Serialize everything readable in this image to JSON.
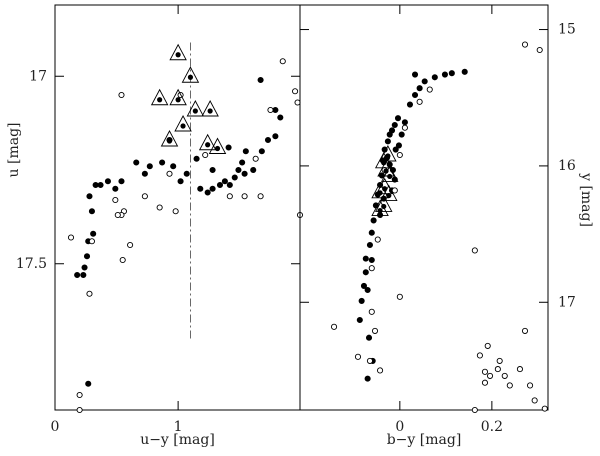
{
  "chart_data": [
    {
      "type": "scatter",
      "xlabel": "u−y [mag]",
      "ylabel": "u [mag]",
      "yaxis_side": "left",
      "xlim": [
        0,
        1.99
      ],
      "ylim": [
        17.89,
        16.81
      ],
      "xticks": [
        0,
        1
      ],
      "yticks": [
        17,
        17.5
      ],
      "vline": {
        "x": 1.1,
        "y": [
          16.91,
          17.7
        ]
      },
      "series": [
        {
          "marker": "filled",
          "x": [
            0.27,
            0.23,
            0.18,
            0.24,
            0.26,
            0.27,
            0.31,
            0.3,
            0.33,
            0.28,
            0.37,
            0.43,
            0.49,
            0.54,
            0.66,
            0.73,
            0.77,
            0.87,
            0.96,
            1.02,
            1.07,
            1.15,
            1.18,
            1.24,
            1.28,
            1.34,
            1.38,
            1.42,
            1.46,
            1.49,
            1.54,
            1.52,
            1.61,
            1.68,
            1.73,
            1.79,
            1.83,
            1.67,
            1.79,
            1.55,
            1.41,
            1.28,
            0.93
          ],
          "values": [
            17.82,
            17.53,
            17.53,
            17.51,
            17.48,
            17.44,
            17.42,
            17.36,
            17.29,
            17.32,
            17.29,
            17.28,
            17.3,
            17.28,
            17.23,
            17.26,
            17.24,
            17.23,
            17.24,
            17.28,
            17.26,
            17.22,
            17.3,
            17.31,
            17.3,
            17.29,
            17.28,
            17.29,
            17.27,
            17.25,
            17.26,
            17.23,
            17.25,
            17.2,
            17.17,
            17.16,
            17.11,
            17.01,
            17.09,
            17.2,
            17.19,
            17.25,
            17.17
          ]
        },
        {
          "marker": "open",
          "x": [
            0.13,
            0.2,
            0.2,
            0.28,
            0.55,
            0.61,
            0.73,
            0.85,
            0.93,
            0.49,
            0.56,
            0.54,
            0.98,
            1.22,
            1.42,
            1.54,
            1.63,
            1.75,
            1.85,
            1.95,
            1.97,
            1.99,
            1.67,
            1.02,
            0.54,
            0.3,
            0.51
          ],
          "values": [
            17.43,
            17.89,
            17.85,
            17.58,
            17.49,
            17.45,
            17.32,
            17.35,
            17.26,
            17.33,
            17.36,
            17.37,
            17.36,
            17.21,
            17.32,
            17.32,
            17.22,
            17.09,
            16.96,
            17.04,
            17.07,
            17.37,
            17.32,
            17.05,
            17.05,
            17.44,
            17.37
          ]
        },
        {
          "marker": "triangle",
          "x": [
            1.0,
            1.1,
            0.85,
            1.0,
            1.14,
            1.26,
            1.04,
            0.93,
            1.24,
            1.32
          ],
          "values": [
            16.94,
            17.0,
            17.06,
            17.06,
            17.09,
            17.09,
            17.13,
            17.17,
            17.18,
            17.19
          ]
        }
      ]
    },
    {
      "type": "scatter",
      "xlabel": "b−y [mag]",
      "ylabel": "y [mag]",
      "yaxis_side": "right",
      "xlim": [
        -0.217,
        0.322
      ],
      "ylim": [
        17.79,
        14.82
      ],
      "xticks": [
        0,
        0.2
      ],
      "yticks": [
        15,
        16,
        17
      ],
      "series": [
        {
          "marker": "filled",
          "x": [
            -0.07,
            -0.087,
            -0.083,
            -0.078,
            -0.074,
            -0.074,
            -0.065,
            -0.061,
            -0.057,
            -0.052,
            -0.048,
            -0.043,
            -0.039,
            -0.037,
            -0.033,
            -0.026,
            -0.022,
            -0.017,
            -0.011,
            -0.004,
            -0.011,
            -0.015,
            -0.022,
            -0.028,
            -0.009,
            -0.002,
            0.004,
            0.011,
            0.022,
            0.033,
            0.043,
            0.054,
            0.076,
            0.098,
            0.113,
            0.141,
            0.033,
            -0.017,
            -0.035,
            -0.043,
            -0.061,
            -0.07,
            -0.067,
            -0.059
          ],
          "values": [
            17.56,
            17.13,
            16.99,
            16.88,
            16.78,
            16.68,
            16.58,
            16.49,
            16.4,
            16.29,
            16.21,
            16.14,
            16.07,
            15.96,
            15.88,
            15.82,
            15.77,
            15.74,
            15.7,
            15.65,
            16.1,
            16.03,
            15.99,
            15.94,
            15.88,
            15.85,
            15.77,
            15.68,
            15.55,
            15.48,
            15.43,
            15.38,
            15.35,
            15.33,
            15.32,
            15.31,
            15.33,
            16.18,
            16.24,
            16.36,
            16.69,
            16.91,
            17.26,
            17.43
          ]
        },
        {
          "marker": "open",
          "x": [
            -0.143,
            -0.091,
            -0.065,
            -0.043,
            -0.061,
            -0.054,
            0,
            -0.048,
            -0.061,
            -0.011,
            -0.033,
            0,
            0.011,
            0.043,
            0.065,
            0.163,
            0.272,
            0.304,
            0.272,
            0.191,
            0.174,
            0.217,
            0.196,
            0.185,
            0.213,
            0.228,
            0.239,
            0.283,
            0.185,
            0.163,
            0.315,
            0.293,
            0.261
          ],
          "values": [
            17.18,
            17.4,
            17.43,
            17.5,
            17.07,
            17.21,
            16.96,
            16.54,
            16.75,
            16.18,
            16.03,
            15.92,
            15.72,
            15.53,
            15.44,
            16.62,
            15.11,
            15.15,
            17.21,
            17.32,
            17.39,
            17.43,
            17.54,
            17.51,
            17.49,
            17.54,
            17.61,
            17.61,
            17.59,
            17.79,
            17.78,
            17.72,
            17.49
          ]
        },
        {
          "marker": "triangle",
          "x": [
            -0.026,
            -0.035,
            -0.03,
            -0.022,
            -0.033,
            -0.024,
            -0.043,
            -0.035,
            -0.043
          ],
          "values": [
            15.92,
            15.97,
            16.03,
            16.07,
            16.16,
            16.21,
            16.19,
            16.29,
            16.32
          ]
        }
      ]
    }
  ]
}
